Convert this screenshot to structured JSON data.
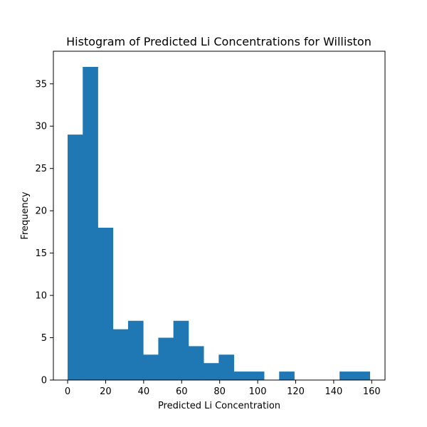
{
  "chart_data": {
    "type": "bar",
    "subtype": "histogram",
    "title": "Histogram of Predicted Li Concentrations for Williston",
    "xlabel": "Predicted Li Concentration",
    "ylabel": "Frequency",
    "bar_color": "#1f77b4",
    "xlim": [
      -7.5,
      167
    ],
    "ylim": [
      0,
      38.85
    ],
    "xticks": [
      0,
      20,
      40,
      60,
      80,
      100,
      120,
      140,
      160
    ],
    "yticks": [
      0,
      5,
      10,
      15,
      20,
      25,
      30,
      35
    ],
    "bins": [
      {
        "start": 0.0,
        "end": 7.95,
        "count": 29
      },
      {
        "start": 7.95,
        "end": 15.9,
        "count": 37
      },
      {
        "start": 15.9,
        "end": 23.85,
        "count": 18
      },
      {
        "start": 23.85,
        "end": 31.8,
        "count": 6
      },
      {
        "start": 31.8,
        "end": 39.75,
        "count": 7
      },
      {
        "start": 39.75,
        "end": 47.7,
        "count": 3
      },
      {
        "start": 47.7,
        "end": 55.65,
        "count": 5
      },
      {
        "start": 55.65,
        "end": 63.6,
        "count": 7
      },
      {
        "start": 63.6,
        "end": 71.55,
        "count": 4
      },
      {
        "start": 71.55,
        "end": 79.5,
        "count": 2
      },
      {
        "start": 79.5,
        "end": 87.45,
        "count": 3
      },
      {
        "start": 87.45,
        "end": 95.4,
        "count": 1
      },
      {
        "start": 95.4,
        "end": 103.35,
        "count": 1
      },
      {
        "start": 103.35,
        "end": 111.3,
        "count": 0
      },
      {
        "start": 111.3,
        "end": 119.25,
        "count": 1
      },
      {
        "start": 119.25,
        "end": 127.2,
        "count": 0
      },
      {
        "start": 127.2,
        "end": 135.15,
        "count": 0
      },
      {
        "start": 135.15,
        "end": 143.1,
        "count": 0
      },
      {
        "start": 143.1,
        "end": 151.05,
        "count": 1
      },
      {
        "start": 151.05,
        "end": 159.0,
        "count": 1
      }
    ]
  }
}
